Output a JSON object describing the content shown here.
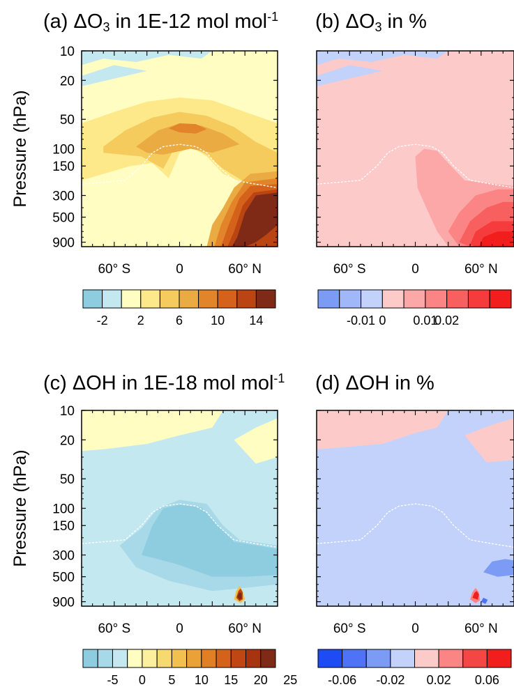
{
  "colors": {
    "o3_abs": [
      "#8ecde0",
      "#c4e8f0",
      "#fffdc2",
      "#fde98a",
      "#f6cb5e",
      "#eaab43",
      "#e2852a",
      "#d5621a",
      "#ba4412",
      "#7e2a16"
    ],
    "o3_pct": [
      "#7b9bf5",
      "#a1b8f8",
      "#c3d2fb",
      "#fdcaca",
      "#fca8a8",
      "#fb8484",
      "#f85f5f",
      "#f53b3b",
      "#f21d1d"
    ],
    "oh_abs": [
      "#8ecde0",
      "#a7d9e8",
      "#c4e8f0",
      "#fffdc2",
      "#fcef9e",
      "#f6d971",
      "#f1c04f",
      "#eaa236",
      "#e07f24",
      "#d5621a",
      "#c04614",
      "#a63411",
      "#7e2a16"
    ],
    "oh_pct": [
      "#1f4bf5",
      "#4e73f6",
      "#7b9bf5",
      "#c3d2fb",
      "#fdcaca",
      "#fb8484",
      "#f54646",
      "#f21d1d"
    ],
    "tropopause": "#ffffff"
  },
  "panels": [
    {
      "id": "a",
      "title_parts": [
        "(a) ",
        "ΔO",
        "3",
        " in 1E-12 mol mol",
        "-1"
      ],
      "show_ylabel": true,
      "ylabel": "Pressure (hPa)",
      "colorbar": {
        "palette": "o3_abs",
        "labels": [
          "-2",
          "2",
          "6",
          "10",
          "14"
        ],
        "label_after_box": [
          1,
          3,
          5,
          7,
          9
        ]
      }
    },
    {
      "id": "b",
      "title_parts": [
        "(b)      ",
        "ΔO",
        "3",
        " in %",
        ""
      ],
      "show_ylabel": false,
      "ylabel": "",
      "colorbar": {
        "palette": "o3_pct",
        "labels": [
          "-0.01",
          "0",
          "0.01",
          "0.02"
        ],
        "label_after_box": [
          2,
          3,
          5,
          6
        ]
      }
    },
    {
      "id": "c",
      "title_parts": [
        "(c) ",
        "ΔOH",
        "",
        " in 1E-18 mol mol",
        "-1"
      ],
      "show_ylabel": true,
      "ylabel": "Pressure (hPa)",
      "colorbar": {
        "palette": "oh_abs",
        "labels": [
          "-5",
          "0",
          "5",
          "10",
          "15",
          "20",
          "25"
        ],
        "label_after_box": [
          2,
          4,
          6,
          8,
          10,
          12,
          14
        ]
      }
    },
    {
      "id": "d",
      "title_parts": [
        "(d)      ",
        "ΔOH",
        "",
        " in %",
        ""
      ],
      "show_ylabel": false,
      "ylabel": "",
      "colorbar": {
        "palette": "oh_pct",
        "labels": [
          "-0.06",
          "-0.02",
          "0.02",
          "0.06"
        ],
        "label_after_box": [
          1,
          3,
          5,
          7
        ]
      }
    }
  ],
  "chart_data": {
    "type": "heatmap",
    "panel_count": 4,
    "x_axis": {
      "ticks": [
        -60,
        0,
        60
      ],
      "tick_labels": [
        "60° S",
        "0",
        "60° N"
      ],
      "range": [
        -90,
        90
      ],
      "unit": "degrees latitude"
    },
    "y_axis": {
      "label": "Pressure (hPa)",
      "scale": "log",
      "range": [
        10,
        1000
      ],
      "ticks": [
        10,
        20,
        50,
        100,
        150,
        300,
        500,
        900
      ],
      "tick_labels": [
        "10",
        "20",
        "50",
        "100",
        "150",
        "300",
        "500",
        "900"
      ],
      "reversed": true
    },
    "tropopause_curve": {
      "lat": [
        -90,
        -70,
        -50,
        -35,
        -25,
        -15,
        0,
        15,
        25,
        35,
        50,
        70,
        90
      ],
      "pressure_hPa": [
        230,
        220,
        210,
        150,
        110,
        95,
        90,
        95,
        110,
        150,
        210,
        230,
        250
      ]
    },
    "fields": [
      {
        "panel": "a",
        "quantity": "ΔO3",
        "unit": "1E-12 mol mol-1",
        "levels": [
          -4,
          -2,
          0,
          2,
          4,
          6,
          8,
          10,
          12,
          14,
          16
        ],
        "approx_values": {
          "stratosphere_high_lat_south": -1,
          "upper_strat_10_20hPa": 1,
          "mid_strat_50_100hPa": 5,
          "max_lower_strat_tropics_60hPa": 10,
          "tropical_troposphere": 1,
          "nh_lower_troposphere_60N": 16
        }
      },
      {
        "panel": "b",
        "quantity": "ΔO3",
        "unit": "%",
        "levels": [
          -0.02,
          -0.015,
          -0.01,
          -0.005,
          0,
          0.005,
          0.01,
          0.015,
          0.02,
          0.025
        ],
        "approx_values": {
          "upper_strat": -0.003,
          "broad_background": 0.003,
          "nh_lower_troposphere_60N": 0.025
        }
      },
      {
        "panel": "c",
        "quantity": "ΔOH",
        "unit": "1E-18 mol mol-1",
        "levels": [
          -7.5,
          -5,
          -2.5,
          0,
          2.5,
          5,
          7.5,
          10,
          12.5,
          15,
          17.5,
          20,
          22.5,
          25,
          27.5
        ],
        "approx_values": {
          "upper_strat": 1,
          "background": -1,
          "tropical_upper_troposphere": -5,
          "nh_lower_troposphere_55N_800hPa": 27
        }
      },
      {
        "panel": "d",
        "quantity": "ΔOH",
        "unit": "%",
        "levels": [
          -0.08,
          -0.06,
          -0.04,
          -0.02,
          0,
          0.02,
          0.04,
          0.06,
          0.08
        ],
        "approx_values": {
          "upper_strat": 0.01,
          "background": -0.01,
          "nh_70N_400hPa": -0.03,
          "nh_lower_troposphere_55N_800hPa": 0.08
        }
      }
    ]
  }
}
